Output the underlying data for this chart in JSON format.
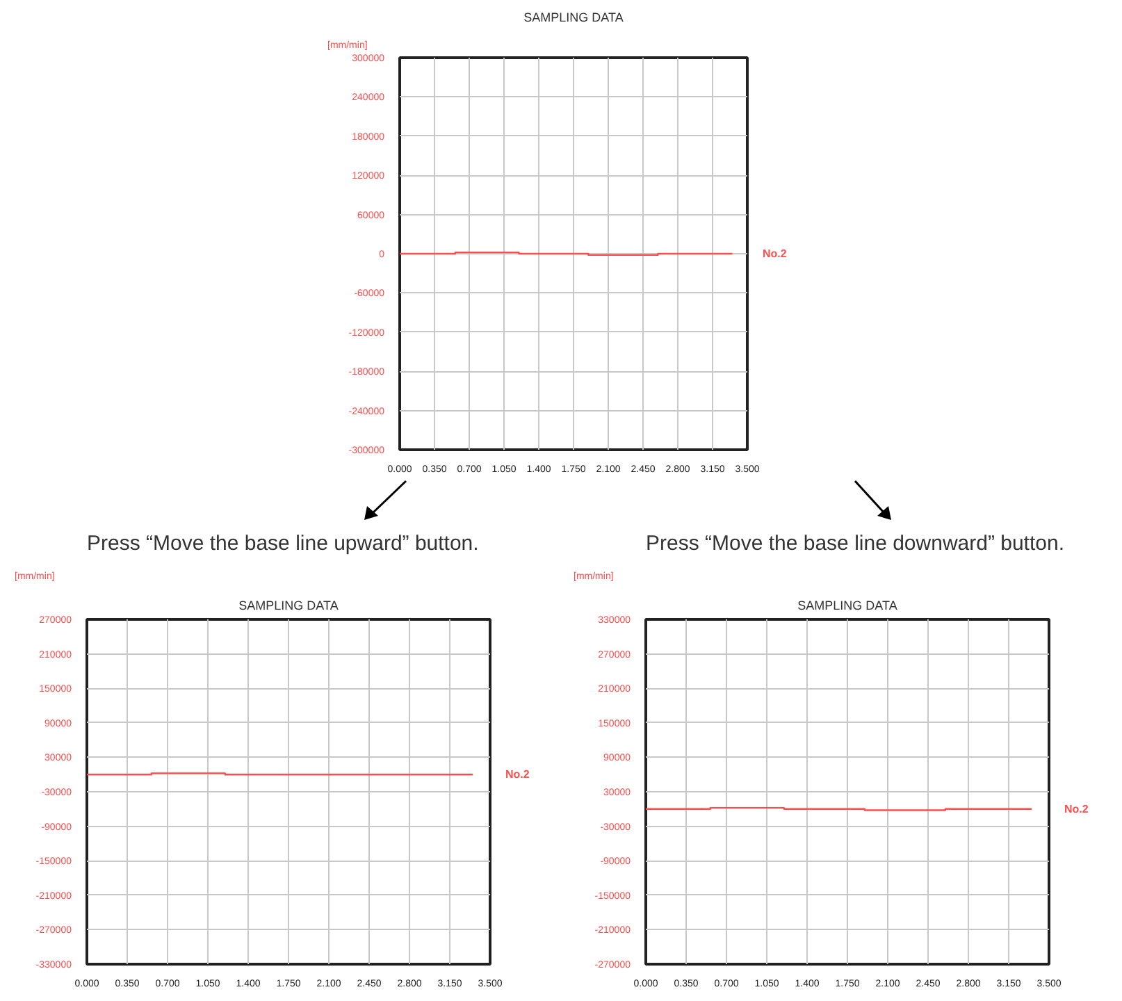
{
  "chart_data": [
    {
      "type": "line",
      "title": "SAMPLING DATA",
      "ylabel": "[mm/min]",
      "xlim": [
        0,
        3.5
      ],
      "ylim": [
        -300000,
        300000
      ],
      "xticks": [
        {
          "value": 0,
          "label": "0.000"
        },
        {
          "value": 0.35,
          "label": "0.350"
        },
        {
          "value": 0.7,
          "label": "0.700"
        },
        {
          "value": 1.05,
          "label": "1.050"
        },
        {
          "value": 1.4,
          "label": "1.400"
        },
        {
          "value": 1.75,
          "label": "1.750"
        },
        {
          "value": 2.1,
          "label": "2.100"
        },
        {
          "value": 2.45,
          "label": "2.450"
        },
        {
          "value": 2.8,
          "label": "2.800"
        },
        {
          "value": 3.15,
          "label": "3.150"
        },
        {
          "value": 3.5,
          "label": "3.500"
        }
      ],
      "yticks": [
        -300000,
        -240000,
        -180000,
        -120000,
        -60000,
        0,
        60000,
        120000,
        180000,
        240000,
        300000
      ],
      "grid": true,
      "series": [
        {
          "name": "No.2",
          "color": "#ff4d4d",
          "x": [
            0,
            0.56,
            0.56,
            1.2,
            1.2,
            1.9,
            1.9,
            2.6,
            2.6,
            3.35
          ],
          "values": [
            0,
            0,
            2000,
            2000,
            0,
            0,
            -2000,
            -2000,
            0,
            0
          ]
        }
      ]
    },
    {
      "type": "line",
      "title": "SAMPLING DATA",
      "ylabel": "[mm/min]",
      "annotations": [
        "Press “Move the base line upward” button."
      ],
      "xlim": [
        0,
        3.5
      ],
      "ylim": [
        -330000,
        270000
      ],
      "xticks": [
        {
          "value": 0,
          "label": "0.000"
        },
        {
          "value": 0.35,
          "label": "0.350"
        },
        {
          "value": 0.7,
          "label": "0.700"
        },
        {
          "value": 1.05,
          "label": "1.050"
        },
        {
          "value": 1.4,
          "label": "1.400"
        },
        {
          "value": 1.75,
          "label": "1.750"
        },
        {
          "value": 2.1,
          "label": "2.100"
        },
        {
          "value": 2.45,
          "label": "2.450"
        },
        {
          "value": 2.8,
          "label": "2.800"
        },
        {
          "value": 3.15,
          "label": "3.150"
        },
        {
          "value": 3.5,
          "label": "3.500"
        }
      ],
      "yticks": [
        -330000,
        -270000,
        -210000,
        -150000,
        -90000,
        -30000,
        30000,
        90000,
        150000,
        210000,
        270000
      ],
      "grid": true,
      "series": [
        {
          "name": "No.2",
          "color": "#ff4d4d",
          "x": [
            0,
            0.56,
            0.56,
            1.2,
            1.2,
            3.35
          ],
          "values": [
            0,
            0,
            2000,
            2000,
            0,
            0
          ]
        }
      ]
    },
    {
      "type": "line",
      "title": "SAMPLING DATA",
      "ylabel": "[mm/min]",
      "annotations": [
        "Press “Move the base line downward” button."
      ],
      "xlim": [
        0,
        3.5
      ],
      "ylim": [
        -270000,
        330000
      ],
      "xticks": [
        {
          "value": 0,
          "label": "0.000"
        },
        {
          "value": 0.35,
          "label": "0.350"
        },
        {
          "value": 0.7,
          "label": "0.700"
        },
        {
          "value": 1.05,
          "label": "1.050"
        },
        {
          "value": 1.4,
          "label": "1.400"
        },
        {
          "value": 1.75,
          "label": "1.750"
        },
        {
          "value": 2.1,
          "label": "2.100"
        },
        {
          "value": 2.45,
          "label": "2.450"
        },
        {
          "value": 2.8,
          "label": "2.800"
        },
        {
          "value": 3.15,
          "label": "3.150"
        },
        {
          "value": 3.5,
          "label": "3.500"
        }
      ],
      "yticks": [
        -270000,
        -210000,
        -150000,
        -90000,
        -30000,
        30000,
        90000,
        150000,
        210000,
        270000,
        330000
      ],
      "grid": true,
      "series": [
        {
          "name": "No.2",
          "color": "#ff4d4d",
          "x": [
            0,
            0.56,
            0.56,
            1.2,
            1.2,
            1.9,
            1.9,
            2.6,
            2.6,
            3.35
          ],
          "values": [
            0,
            0,
            2000,
            2000,
            0,
            0,
            -2000,
            -2000,
            0,
            0
          ]
        }
      ]
    }
  ]
}
